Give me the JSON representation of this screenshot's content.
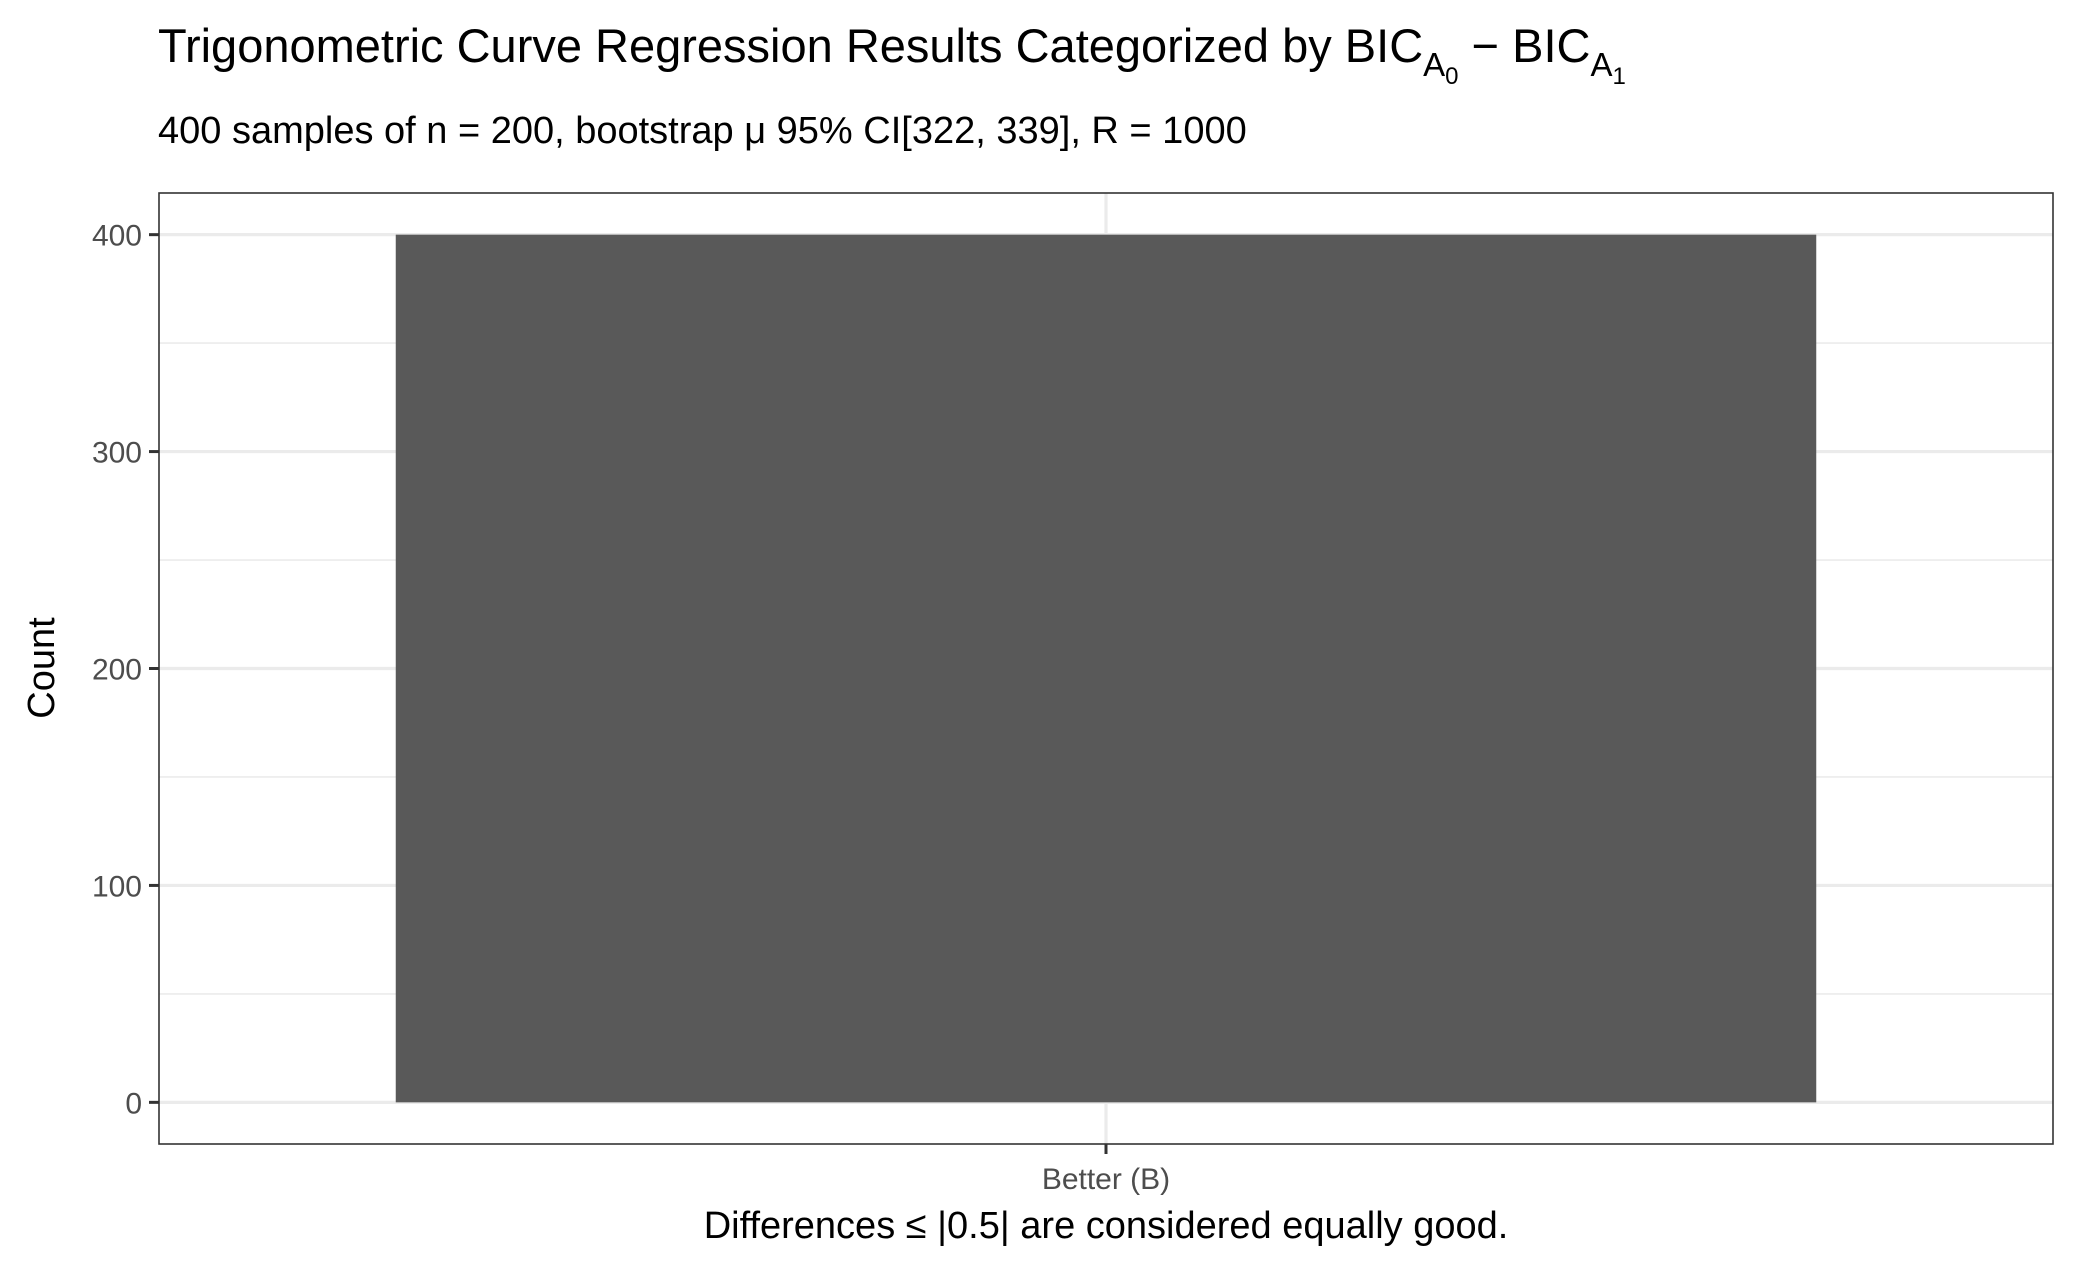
{
  "chart_data": {
    "type": "bar",
    "title": {
      "main": "Trigonometric Curve Regression Results Categorized by BIC",
      "sub1": "A",
      "sub1_index": "0",
      "sep": " − BIC",
      "sub2": "A",
      "sub2_index": "1"
    },
    "subtitle": "400 samples of n = 200, bootstrap μ 95% CI[322, 339], R = 1000",
    "xlabel": "Differences ≤ |0.5| are considered equally good.",
    "ylabel": "Count",
    "categories": [
      "Better (B)"
    ],
    "values": [
      400
    ],
    "ylim": [
      -19.2,
      419.2
    ],
    "yticks": [
      0,
      100,
      200,
      300,
      400
    ],
    "grid": true,
    "legend": "none",
    "colors": {
      "bar": "#595959",
      "grid": "#ebebeb",
      "panel_border": "#333333",
      "tick_text": "#4d4d4d",
      "text": "#000000"
    }
  }
}
